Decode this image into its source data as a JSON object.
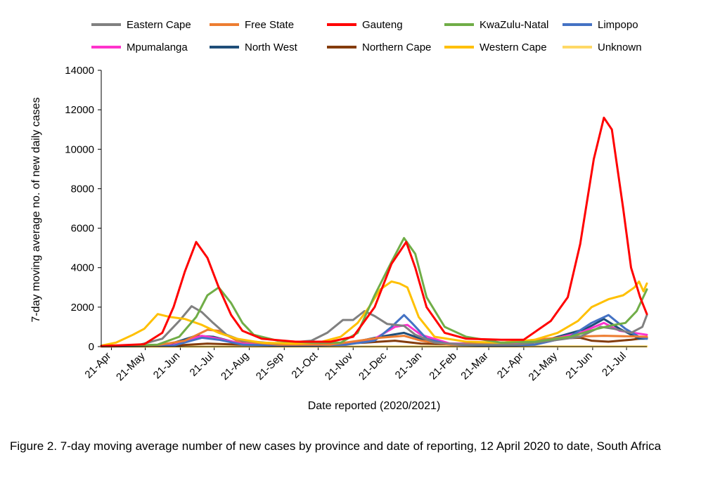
{
  "caption": "Figure 2. 7-day moving average number of new cases by province and date of reporting, 12 April 2020 to date, South Africa",
  "chart_data": {
    "type": "line",
    "title": "",
    "xlabel": "Date reported (2020/2021)",
    "ylabel": "7-day moving average no. of new daily cases",
    "ylim": [
      0,
      14000
    ],
    "yticks": [
      0,
      2000,
      4000,
      6000,
      8000,
      10000,
      12000,
      14000
    ],
    "xlim": [
      "2020-04-12",
      "2021-08-08"
    ],
    "xticks": [
      {
        "label": "21-Apr",
        "date": "2020-04-21"
      },
      {
        "label": "21-May",
        "date": "2020-05-21"
      },
      {
        "label": "21-Jun",
        "date": "2020-06-21"
      },
      {
        "label": "21-Jul",
        "date": "2020-07-21"
      },
      {
        "label": "21-Aug",
        "date": "2020-08-21"
      },
      {
        "label": "21-Sep",
        "date": "2020-09-21"
      },
      {
        "label": "21-Oct",
        "date": "2020-10-21"
      },
      {
        "label": "21-Nov",
        "date": "2020-11-21"
      },
      {
        "label": "21-Dec",
        "date": "2020-12-21"
      },
      {
        "label": "21-Jan",
        "date": "2021-01-21"
      },
      {
        "label": "21-Feb",
        "date": "2021-02-21"
      },
      {
        "label": "21-Mar",
        "date": "2021-03-21"
      },
      {
        "label": "21-Apr",
        "date": "2021-04-21"
      },
      {
        "label": "21-May",
        "date": "2021-05-21"
      },
      {
        "label": "21-Jun",
        "date": "2021-06-21"
      },
      {
        "label": "21-Jul",
        "date": "2021-07-21"
      }
    ],
    "grid": false,
    "legend_position": "top",
    "series": [
      {
        "name": "Eastern Cape",
        "color": "#808080",
        "points": [
          [
            "2020-04-12",
            20
          ],
          [
            "2020-05-15",
            80
          ],
          [
            "2020-06-05",
            400
          ],
          [
            "2020-06-20",
            1300
          ],
          [
            "2020-07-01",
            2050
          ],
          [
            "2020-07-10",
            1750
          ],
          [
            "2020-07-20",
            1200
          ],
          [
            "2020-08-01",
            600
          ],
          [
            "2020-08-15",
            300
          ],
          [
            "2020-09-15",
            150
          ],
          [
            "2020-10-15",
            300
          ],
          [
            "2020-10-29",
            700
          ],
          [
            "2020-11-12",
            1350
          ],
          [
            "2020-11-21",
            1350
          ],
          [
            "2020-12-01",
            1800
          ],
          [
            "2020-12-10",
            1550
          ],
          [
            "2020-12-21",
            1150
          ],
          [
            "2021-01-05",
            1050
          ],
          [
            "2021-01-15",
            600
          ],
          [
            "2021-02-01",
            200
          ],
          [
            "2021-03-01",
            100
          ],
          [
            "2021-04-15",
            100
          ],
          [
            "2021-05-15",
            300
          ],
          [
            "2021-06-10",
            500
          ],
          [
            "2021-06-28",
            1000
          ],
          [
            "2021-07-10",
            900
          ],
          [
            "2021-07-25",
            700
          ],
          [
            "2021-08-04",
            1000
          ],
          [
            "2021-08-08",
            1600
          ]
        ]
      },
      {
        "name": "Free State",
        "color": "#ed7d31",
        "points": [
          [
            "2020-04-12",
            5
          ],
          [
            "2020-06-01",
            80
          ],
          [
            "2020-06-25",
            300
          ],
          [
            "2020-07-15",
            850
          ],
          [
            "2020-07-25",
            800
          ],
          [
            "2020-08-10",
            300
          ],
          [
            "2020-09-15",
            100
          ],
          [
            "2020-11-01",
            100
          ],
          [
            "2020-12-15",
            450
          ],
          [
            "2021-01-05",
            550
          ],
          [
            "2021-01-20",
            300
          ],
          [
            "2021-02-15",
            100
          ],
          [
            "2021-04-01",
            150
          ],
          [
            "2021-05-01",
            350
          ],
          [
            "2021-06-01",
            500
          ],
          [
            "2021-07-01",
            550
          ],
          [
            "2021-08-08",
            500
          ]
        ]
      },
      {
        "name": "Gauteng",
        "color": "#ff0000",
        "points": [
          [
            "2020-04-12",
            30
          ],
          [
            "2020-05-20",
            120
          ],
          [
            "2020-06-05",
            700
          ],
          [
            "2020-06-15",
            2000
          ],
          [
            "2020-06-25",
            3800
          ],
          [
            "2020-07-05",
            5300
          ],
          [
            "2020-07-15",
            4500
          ],
          [
            "2020-07-25",
            3000
          ],
          [
            "2020-08-05",
            1600
          ],
          [
            "2020-08-15",
            800
          ],
          [
            "2020-09-01",
            400
          ],
          [
            "2020-10-01",
            250
          ],
          [
            "2020-11-01",
            250
          ],
          [
            "2020-11-21",
            500
          ],
          [
            "2020-12-10",
            2000
          ],
          [
            "2020-12-25",
            4200
          ],
          [
            "2021-01-07",
            5300
          ],
          [
            "2021-01-15",
            4000
          ],
          [
            "2021-01-25",
            2000
          ],
          [
            "2021-02-10",
            700
          ],
          [
            "2021-03-01",
            400
          ],
          [
            "2021-04-01",
            350
          ],
          [
            "2021-04-21",
            350
          ],
          [
            "2021-05-15",
            1300
          ],
          [
            "2021-05-30",
            2500
          ],
          [
            "2021-06-10",
            5200
          ],
          [
            "2021-06-22",
            9500
          ],
          [
            "2021-07-01",
            11600
          ],
          [
            "2021-07-08",
            11000
          ],
          [
            "2021-07-18",
            7000
          ],
          [
            "2021-07-25",
            4000
          ],
          [
            "2021-08-02",
            2500
          ],
          [
            "2021-08-08",
            1650
          ]
        ]
      },
      {
        "name": "KwaZulu-Natal",
        "color": "#70ad47",
        "points": [
          [
            "2020-04-12",
            20
          ],
          [
            "2020-06-01",
            100
          ],
          [
            "2020-06-20",
            500
          ],
          [
            "2020-07-05",
            1500
          ],
          [
            "2020-07-15",
            2600
          ],
          [
            "2020-07-25",
            3000
          ],
          [
            "2020-08-05",
            2200
          ],
          [
            "2020-08-15",
            1200
          ],
          [
            "2020-08-25",
            600
          ],
          [
            "2020-09-15",
            300
          ],
          [
            "2020-10-15",
            200
          ],
          [
            "2020-11-10",
            200
          ],
          [
            "2020-11-25",
            700
          ],
          [
            "2020-12-10",
            2600
          ],
          [
            "2020-12-25",
            4300
          ],
          [
            "2021-01-05",
            5500
          ],
          [
            "2021-01-15",
            4700
          ],
          [
            "2021-01-25",
            2500
          ],
          [
            "2021-02-10",
            1000
          ],
          [
            "2021-03-01",
            500
          ],
          [
            "2021-04-01",
            200
          ],
          [
            "2021-05-01",
            250
          ],
          [
            "2021-06-01",
            500
          ],
          [
            "2021-06-25",
            900
          ],
          [
            "2021-07-10",
            1100
          ],
          [
            "2021-07-20",
            1200
          ],
          [
            "2021-07-30",
            1800
          ],
          [
            "2021-08-08",
            2900
          ]
        ]
      },
      {
        "name": "Limpopo",
        "color": "#4472c4",
        "points": [
          [
            "2020-04-12",
            5
          ],
          [
            "2020-06-15",
            50
          ],
          [
            "2020-07-10",
            450
          ],
          [
            "2020-07-25",
            350
          ],
          [
            "2020-08-15",
            100
          ],
          [
            "2020-10-01",
            50
          ],
          [
            "2020-11-15",
            100
          ],
          [
            "2020-12-10",
            300
          ],
          [
            "2020-12-25",
            1000
          ],
          [
            "2021-01-05",
            1600
          ],
          [
            "2021-01-12",
            1200
          ],
          [
            "2021-01-25",
            400
          ],
          [
            "2021-02-15",
            100
          ],
          [
            "2021-04-01",
            50
          ],
          [
            "2021-05-01",
            100
          ],
          [
            "2021-06-01",
            500
          ],
          [
            "2021-06-20",
            1200
          ],
          [
            "2021-07-05",
            1600
          ],
          [
            "2021-07-20",
            900
          ],
          [
            "2021-08-01",
            500
          ],
          [
            "2021-08-08",
            400
          ]
        ]
      },
      {
        "name": "Mpumalanga",
        "color": "#ff33cc",
        "points": [
          [
            "2020-04-12",
            5
          ],
          [
            "2020-06-15",
            80
          ],
          [
            "2020-07-10",
            550
          ],
          [
            "2020-07-25",
            400
          ],
          [
            "2020-08-15",
            150
          ],
          [
            "2020-10-01",
            80
          ],
          [
            "2020-11-15",
            100
          ],
          [
            "2020-12-10",
            400
          ],
          [
            "2020-12-28",
            1000
          ],
          [
            "2021-01-08",
            1100
          ],
          [
            "2021-01-20",
            600
          ],
          [
            "2021-02-15",
            150
          ],
          [
            "2021-04-01",
            100
          ],
          [
            "2021-05-10",
            300
          ],
          [
            "2021-06-10",
            700
          ],
          [
            "2021-07-01",
            1200
          ],
          [
            "2021-07-15",
            800
          ],
          [
            "2021-08-08",
            600
          ]
        ]
      },
      {
        "name": "North West",
        "color": "#1f4e79",
        "points": [
          [
            "2020-04-12",
            5
          ],
          [
            "2020-06-10",
            100
          ],
          [
            "2020-07-05",
            550
          ],
          [
            "2020-07-20",
            500
          ],
          [
            "2020-08-10",
            200
          ],
          [
            "2020-09-20",
            100
          ],
          [
            "2020-11-15",
            150
          ],
          [
            "2020-12-15",
            500
          ],
          [
            "2021-01-05",
            700
          ],
          [
            "2021-01-20",
            400
          ],
          [
            "2021-02-15",
            150
          ],
          [
            "2021-04-01",
            150
          ],
          [
            "2021-05-15",
            400
          ],
          [
            "2021-06-15",
            900
          ],
          [
            "2021-07-01",
            1400
          ],
          [
            "2021-07-15",
            900
          ],
          [
            "2021-08-01",
            400
          ],
          [
            "2021-08-08",
            400
          ]
        ]
      },
      {
        "name": "Northern Cape",
        "color": "#843c0c",
        "points": [
          [
            "2020-04-12",
            5
          ],
          [
            "2020-06-15",
            50
          ],
          [
            "2020-07-15",
            150
          ],
          [
            "2020-08-15",
            100
          ],
          [
            "2020-10-15",
            100
          ],
          [
            "2020-12-01",
            200
          ],
          [
            "2020-12-28",
            300
          ],
          [
            "2021-01-20",
            150
          ],
          [
            "2021-03-01",
            100
          ],
          [
            "2021-04-15",
            250
          ],
          [
            "2021-05-15",
            400
          ],
          [
            "2021-06-10",
            450
          ],
          [
            "2021-06-20",
            300
          ],
          [
            "2021-07-05",
            250
          ],
          [
            "2021-07-25",
            350
          ],
          [
            "2021-08-08",
            450
          ]
        ]
      },
      {
        "name": "Western Cape",
        "color": "#ffc000",
        "points": [
          [
            "2020-04-12",
            50
          ],
          [
            "2020-04-25",
            200
          ],
          [
            "2020-05-10",
            600
          ],
          [
            "2020-05-20",
            900
          ],
          [
            "2020-06-01",
            1650
          ],
          [
            "2020-06-12",
            1500
          ],
          [
            "2020-06-25",
            1400
          ],
          [
            "2020-07-10",
            1100
          ],
          [
            "2020-07-25",
            700
          ],
          [
            "2020-08-10",
            400
          ],
          [
            "2020-09-01",
            200
          ],
          [
            "2020-10-01",
            150
          ],
          [
            "2020-10-21",
            200
          ],
          [
            "2020-11-10",
            500
          ],
          [
            "2020-11-25",
            1200
          ],
          [
            "2020-12-05",
            2000
          ],
          [
            "2020-12-15",
            2900
          ],
          [
            "2020-12-25",
            3300
          ],
          [
            "2021-01-01",
            3200
          ],
          [
            "2021-01-08",
            3000
          ],
          [
            "2021-01-18",
            1500
          ],
          [
            "2021-02-01",
            500
          ],
          [
            "2021-03-01",
            250
          ],
          [
            "2021-04-01",
            200
          ],
          [
            "2021-05-01",
            350
          ],
          [
            "2021-05-21",
            700
          ],
          [
            "2021-06-08",
            1300
          ],
          [
            "2021-06-20",
            2000
          ],
          [
            "2021-07-05",
            2400
          ],
          [
            "2021-07-18",
            2600
          ],
          [
            "2021-07-28",
            3000
          ],
          [
            "2021-08-01",
            3300
          ],
          [
            "2021-08-05",
            2800
          ],
          [
            "2021-08-08",
            3200
          ]
        ]
      },
      {
        "name": "Unknown",
        "color": "#ffd966",
        "points": [
          [
            "2020-04-12",
            0
          ],
          [
            "2021-08-08",
            10
          ]
        ]
      }
    ]
  }
}
